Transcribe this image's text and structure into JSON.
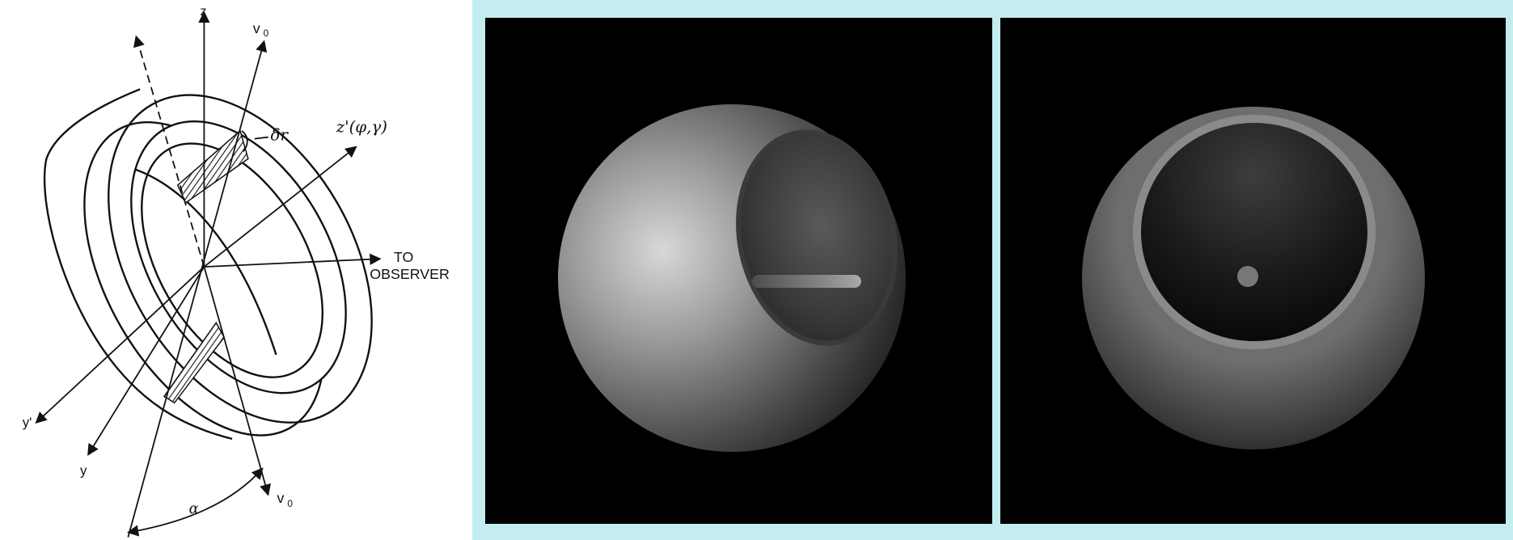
{
  "diagram": {
    "labels": {
      "z": "z",
      "v0_top": "v",
      "v0_top_sub": "0",
      "delta_r": "δr",
      "z_prime": "z'(φ,γ)",
      "to": "TO",
      "observer": "OBSERVER",
      "y_prime": "y'",
      "y": "y",
      "alpha": "α",
      "v0_bottom": "v",
      "v0_bottom_sub": "0"
    }
  },
  "renders": {
    "left_description": "shaded-sphere-tilted-ring-render",
    "right_description": "shaded-sphere-face-on-ring-render"
  },
  "colors": {
    "background": "#c4edf0",
    "render_background": "#000000"
  }
}
